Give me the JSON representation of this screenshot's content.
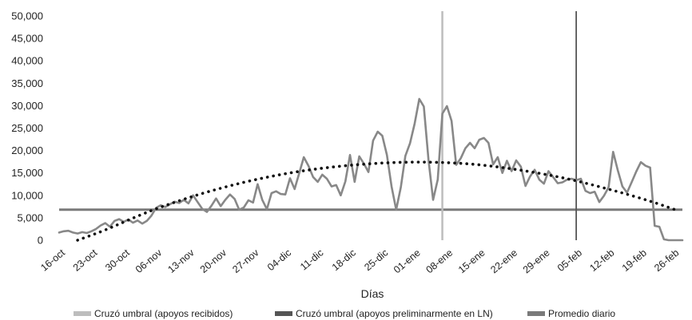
{
  "chart_data": {
    "type": "line",
    "xlabel": "Días",
    "ylabel": "",
    "ylim": [
      0,
      50000
    ],
    "yticks": [
      0,
      5000,
      10000,
      15000,
      20000,
      25000,
      30000,
      35000,
      40000,
      45000,
      50000
    ],
    "ytick_labels": [
      "0",
      "5,000",
      "10,000",
      "15,000",
      "20,000",
      "25,000",
      "30,000",
      "35,000",
      "40,000",
      "45,000",
      "50,000"
    ],
    "xticks": [
      0,
      7,
      14,
      21,
      28,
      35,
      42,
      49,
      56,
      63,
      70,
      77,
      84,
      91,
      98,
      105,
      112,
      119,
      126,
      133
    ],
    "xtick_labels": [
      "16-oct",
      "23-oct",
      "30-oct",
      "06-nov",
      "13-nov",
      "20-nov",
      "27-nov",
      "04-dic",
      "11-dic",
      "18-dic",
      "25-dic",
      "01-ene",
      "08-ene",
      "15-ene",
      "22-ene",
      "29-ene",
      "05-feb",
      "12-feb",
      "19-feb",
      "26-feb"
    ],
    "grid": false,
    "legend_position": "bottom",
    "series": [
      {
        "name": "Promedio diario",
        "kind": "hline",
        "value": 6800,
        "color": "#7a7a7a"
      },
      {
        "name": "Cruzó umbral (apoyos recibidos)",
        "kind": "vline",
        "x": 83,
        "color": "#bdbdbd"
      },
      {
        "name": "Cruzó umbral (apoyos preliminarmente en LN)",
        "kind": "vline",
        "x": 112,
        "color": "#555555"
      },
      {
        "name": "",
        "kind": "line",
        "color": "#888888",
        "points": [
          [
            0,
            1700
          ],
          [
            1,
            2000
          ],
          [
            2,
            2100
          ],
          [
            3,
            1700
          ],
          [
            4,
            1500
          ],
          [
            5,
            1800
          ],
          [
            6,
            1600
          ],
          [
            7,
            2000
          ],
          [
            8,
            2500
          ],
          [
            9,
            3300
          ],
          [
            10,
            3800
          ],
          [
            11,
            3000
          ],
          [
            12,
            4300
          ],
          [
            13,
            4700
          ],
          [
            14,
            4100
          ],
          [
            15,
            4600
          ],
          [
            16,
            3900
          ],
          [
            17,
            4400
          ],
          [
            18,
            3700
          ],
          [
            19,
            4300
          ],
          [
            20,
            5500
          ],
          [
            21,
            7200
          ],
          [
            22,
            7800
          ],
          [
            23,
            7400
          ],
          [
            24,
            8000
          ],
          [
            25,
            8600
          ],
          [
            26,
            8300
          ],
          [
            27,
            9000
          ],
          [
            28,
            8200
          ],
          [
            29,
            10000
          ],
          [
            30,
            8500
          ],
          [
            31,
            7000
          ],
          [
            32,
            6300
          ],
          [
            33,
            7700
          ],
          [
            34,
            9300
          ],
          [
            35,
            7600
          ],
          [
            36,
            9000
          ],
          [
            37,
            10200
          ],
          [
            38,
            9200
          ],
          [
            39,
            6800
          ],
          [
            40,
            7300
          ],
          [
            41,
            8900
          ],
          [
            42,
            8400
          ],
          [
            43,
            12500
          ],
          [
            44,
            9000
          ],
          [
            45,
            6900
          ],
          [
            46,
            10500
          ],
          [
            47,
            10900
          ],
          [
            48,
            10300
          ],
          [
            49,
            10200
          ],
          [
            50,
            13800
          ],
          [
            51,
            11400
          ],
          [
            52,
            14900
          ],
          [
            53,
            18500
          ],
          [
            54,
            16600
          ],
          [
            55,
            14100
          ],
          [
            56,
            13000
          ],
          [
            57,
            14600
          ],
          [
            58,
            13700
          ],
          [
            59,
            12000
          ],
          [
            60,
            12300
          ],
          [
            61,
            10000
          ],
          [
            62,
            13100
          ],
          [
            63,
            19000
          ],
          [
            64,
            13000
          ],
          [
            65,
            18700
          ],
          [
            66,
            17100
          ],
          [
            67,
            15200
          ],
          [
            68,
            22200
          ],
          [
            69,
            24200
          ],
          [
            70,
            23300
          ],
          [
            71,
            19000
          ],
          [
            72,
            12000
          ],
          [
            73,
            6800
          ],
          [
            74,
            11800
          ],
          [
            75,
            18800
          ],
          [
            76,
            21600
          ],
          [
            77,
            26000
          ],
          [
            78,
            31500
          ],
          [
            79,
            29800
          ],
          [
            80,
            18000
          ],
          [
            81,
            9000
          ],
          [
            82,
            13500
          ],
          [
            83,
            28200
          ],
          [
            84,
            29900
          ],
          [
            85,
            26600
          ],
          [
            86,
            16800
          ],
          [
            87,
            18300
          ],
          [
            88,
            20500
          ],
          [
            89,
            21700
          ],
          [
            90,
            20500
          ],
          [
            91,
            22400
          ],
          [
            92,
            22800
          ],
          [
            93,
            21700
          ],
          [
            94,
            16900
          ],
          [
            95,
            18500
          ],
          [
            96,
            15000
          ],
          [
            97,
            17700
          ],
          [
            98,
            15400
          ],
          [
            99,
            17800
          ],
          [
            100,
            16400
          ],
          [
            101,
            12100
          ],
          [
            102,
            14200
          ],
          [
            103,
            15700
          ],
          [
            104,
            13500
          ],
          [
            105,
            12600
          ],
          [
            106,
            15400
          ],
          [
            107,
            14100
          ],
          [
            108,
            12700
          ],
          [
            109,
            12900
          ],
          [
            110,
            13500
          ],
          [
            111,
            13700
          ],
          [
            112,
            13400
          ],
          [
            113,
            13700
          ],
          [
            114,
            11000
          ],
          [
            115,
            10500
          ],
          [
            116,
            10800
          ],
          [
            117,
            8500
          ],
          [
            118,
            9900
          ],
          [
            119,
            11800
          ],
          [
            120,
            19700
          ],
          [
            121,
            15600
          ],
          [
            122,
            12000
          ],
          [
            123,
            10600
          ],
          [
            124,
            12900
          ],
          [
            125,
            15300
          ],
          [
            126,
            17400
          ],
          [
            127,
            16600
          ],
          [
            128,
            16200
          ],
          [
            129,
            3200
          ],
          [
            130,
            3000
          ],
          [
            131,
            200
          ],
          [
            132,
            0
          ],
          [
            133,
            0
          ],
          [
            134,
            0
          ],
          [
            135,
            0
          ]
        ]
      },
      {
        "name": "",
        "kind": "trend",
        "color": "#111111",
        "points": [
          [
            4,
            0
          ],
          [
            10,
            2300
          ],
          [
            20,
            6600
          ],
          [
            30,
            10100
          ],
          [
            40,
            12900
          ],
          [
            50,
            15000
          ],
          [
            60,
            16400
          ],
          [
            70,
            17200
          ],
          [
            80,
            17400
          ],
          [
            90,
            16900
          ],
          [
            100,
            15600
          ],
          [
            110,
            13700
          ],
          [
            120,
            11100
          ],
          [
            128,
            8700
          ],
          [
            134,
            6600
          ]
        ]
      }
    ],
    "legend": [
      {
        "label": "Cruzó umbral (apoyos recibidos)",
        "color": "#bdbdbd"
      },
      {
        "label": "Cruzó umbral (apoyos preliminarmente en LN)",
        "color": "#555555"
      },
      {
        "label": "Promedio diario",
        "color": "#7a7a7a"
      }
    ]
  }
}
